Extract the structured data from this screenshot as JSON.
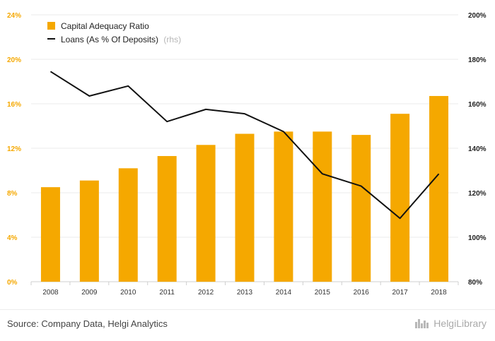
{
  "chart_data": {
    "type": "bar+line",
    "categories": [
      "2008",
      "2009",
      "2010",
      "2011",
      "2012",
      "2013",
      "2014",
      "2015",
      "2016",
      "2017",
      "2018"
    ],
    "series": [
      {
        "name": "Capital Adequacy Ratio",
        "kind": "bar",
        "axis": "left",
        "color": "#f5a800",
        "values": [
          8.5,
          9.1,
          10.2,
          11.3,
          12.3,
          13.3,
          13.5,
          13.5,
          13.2,
          15.1,
          16.7
        ]
      },
      {
        "name": "Loans (As % Of Deposits)",
        "suffix": "(rhs)",
        "kind": "line",
        "axis": "right",
        "color": "#111111",
        "values": [
          174.5,
          163.5,
          168,
          152,
          157.5,
          155.5,
          147.5,
          128.5,
          123,
          108.5,
          128.5
        ]
      }
    ],
    "y_left": {
      "min": 0,
      "max": 24,
      "ticks": [
        "0%",
        "4%",
        "8%",
        "12%",
        "16%",
        "20%",
        "24%"
      ]
    },
    "y_right": {
      "min": 80,
      "max": 200,
      "ticks": [
        "80%",
        "100%",
        "120%",
        "140%",
        "160%",
        "180%",
        "200%"
      ]
    },
    "legend_position": "top-left",
    "grid": true
  },
  "footer": {
    "source": "Source: Company Data, Helgi Analytics",
    "logo": "HelgiLibrary"
  }
}
